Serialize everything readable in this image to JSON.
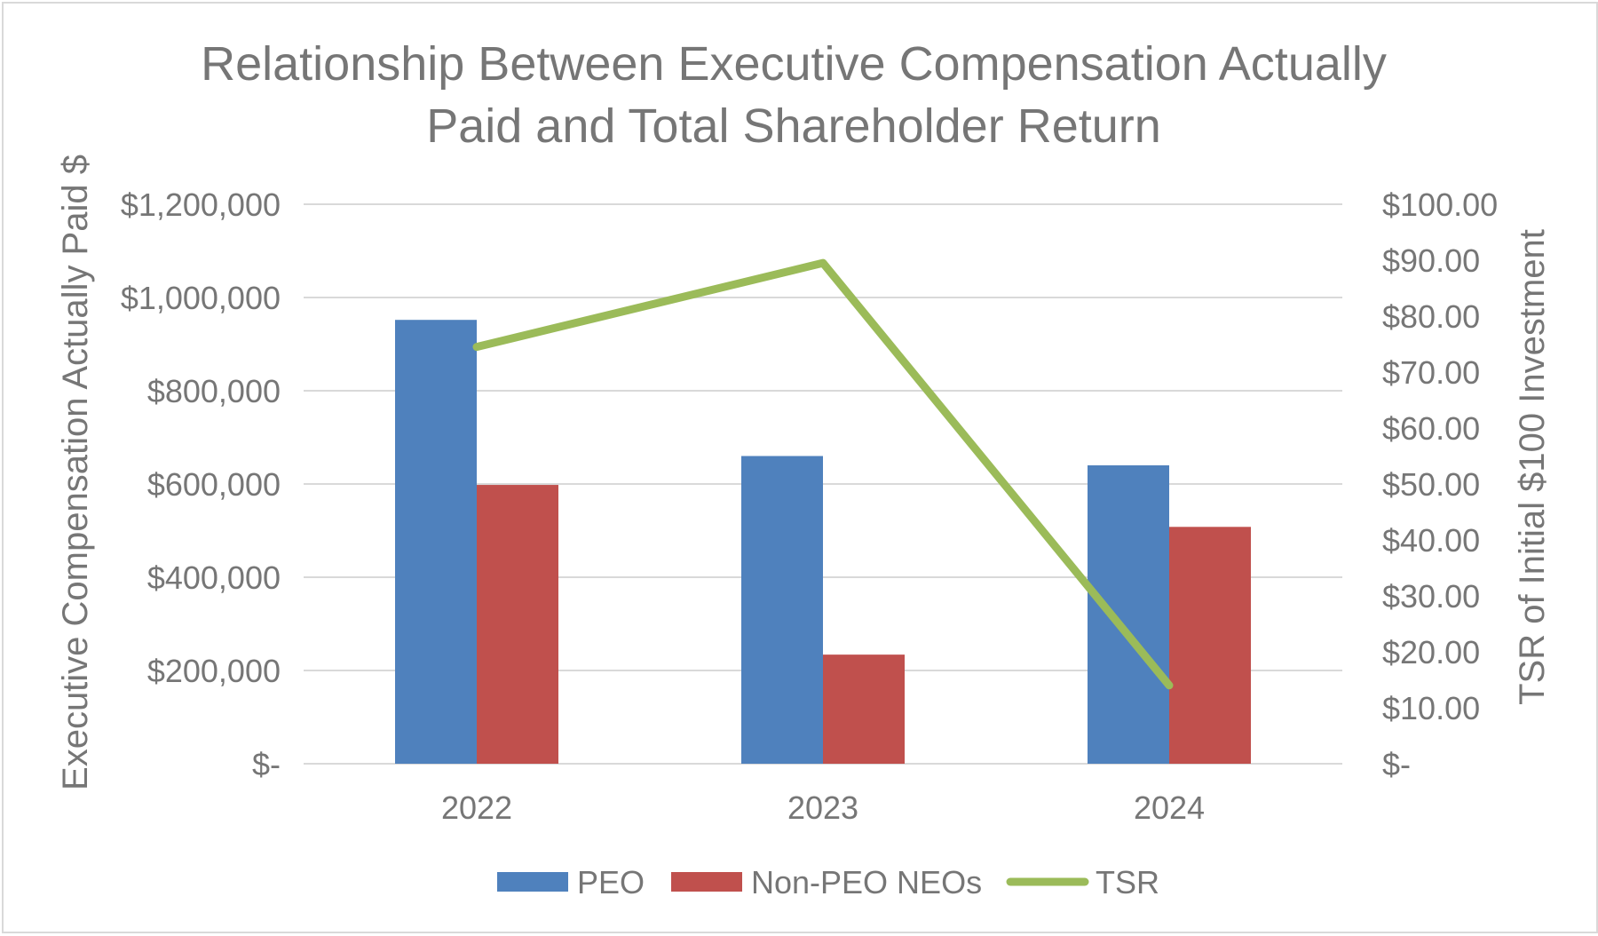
{
  "chart_data": {
    "type": "bar",
    "title": "Relationship Between Executive Compensation Actually Paid and Total Shareholder Return",
    "title_lines": [
      "Relationship Between Executive Compensation Actually",
      "Paid and Total Shareholder Return"
    ],
    "categories": [
      "2022",
      "2023",
      "2024"
    ],
    "ylabel": "Executive Compensation Actually Paid $",
    "y2label": "TSR of Initial $100 Investment",
    "ylim": [
      0,
      1200000
    ],
    "y2lim": [
      0,
      100
    ],
    "y_ticks": [
      0,
      200000,
      400000,
      600000,
      800000,
      1000000,
      1200000
    ],
    "y_tick_labels": [
      "$-",
      "$200,000",
      "$400,000",
      "$600,000",
      "$800,000",
      "$1,000,000",
      "$1,200,000"
    ],
    "y2_ticks": [
      0,
      10,
      20,
      30,
      40,
      50,
      60,
      70,
      80,
      90,
      100
    ],
    "y2_tick_labels": [
      "$-",
      "$10.00",
      "$20.00",
      "$30.00",
      "$40.00",
      "$50.00",
      "$60.00",
      "$70.00",
      "$80.00",
      "$90.00",
      "$100.00"
    ],
    "grid": true,
    "legend_position": "bottom",
    "series": [
      {
        "name": "PEO",
        "kind": "bar",
        "axis": "left",
        "color": "#4f81bd",
        "values": [
          952000,
          660000,
          640000
        ]
      },
      {
        "name": "Non-PEO NEOs",
        "kind": "bar",
        "axis": "left",
        "color": "#c0504d",
        "values": [
          598000,
          234000,
          508000
        ]
      },
      {
        "name": "TSR",
        "kind": "line",
        "axis": "right",
        "color": "#9bbb59",
        "values": [
          74.5,
          89.5,
          14
        ]
      }
    ]
  }
}
